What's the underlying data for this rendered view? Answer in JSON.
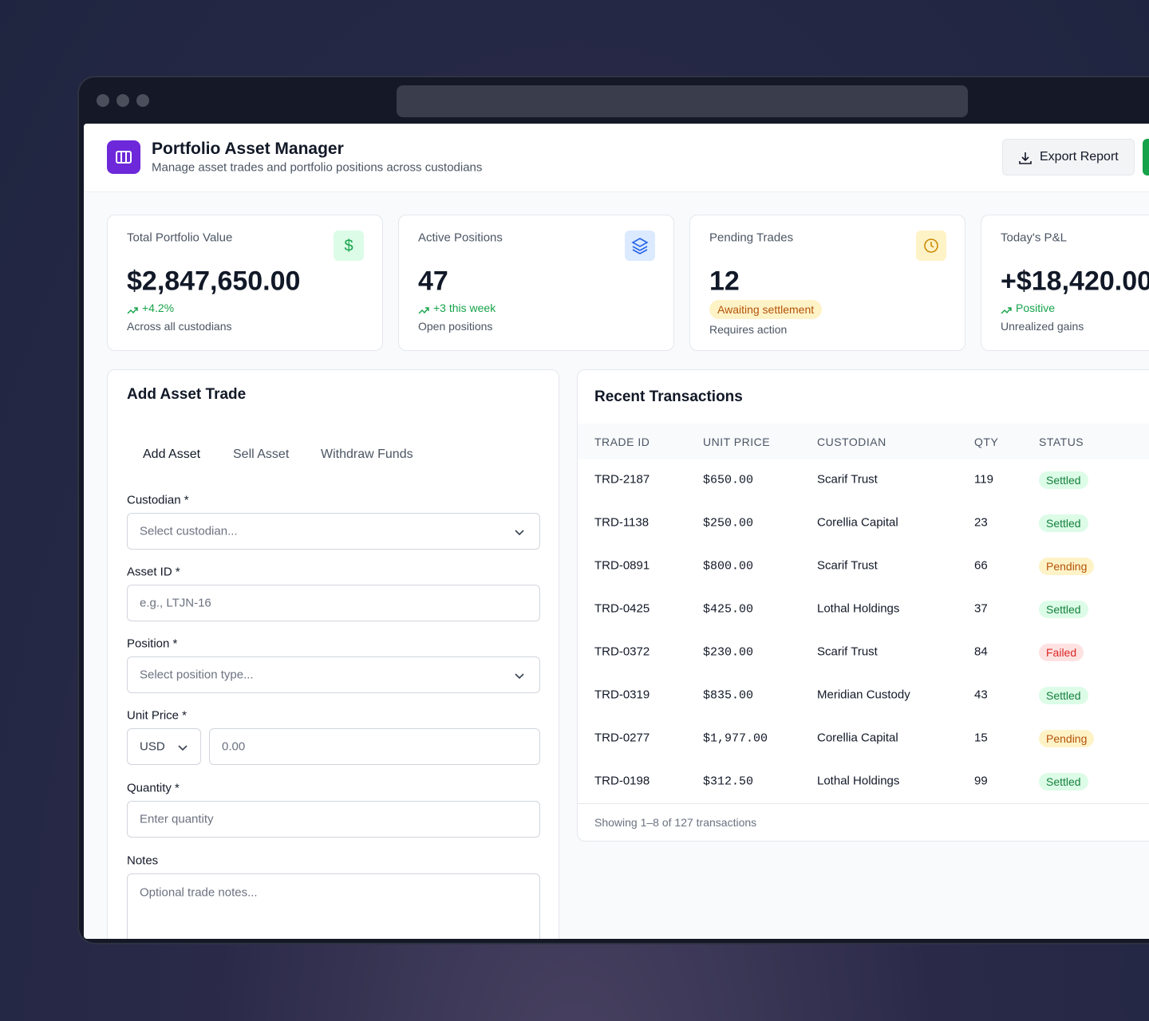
{
  "header": {
    "title": "Portfolio Asset Manager",
    "subtitle": "Manage asset trades and portfolio positions across custodians",
    "export_button": "Export Report"
  },
  "stats": [
    {
      "label": "Total Portfolio Value",
      "value": "$2,847,650.00",
      "change": "+4.2%",
      "note": "Across all custodians",
      "icon_color": "#16a34a",
      "icon_bg": "#dcfce7"
    },
    {
      "label": "Active Positions",
      "value": "47",
      "change": "+3 this week",
      "note": "Open positions",
      "icon_color": "#2563eb",
      "icon_bg": "#dbeafe"
    },
    {
      "label": "Pending Trades",
      "value": "12",
      "badge": "Awaiting settlement",
      "note": "Requires action",
      "icon_color": "#ca8a04",
      "icon_bg": "#fef3c7"
    },
    {
      "label": "Today's P&L",
      "value": "+$18,420.00",
      "change": "Positive",
      "note": "Unrealized gains"
    }
  ],
  "form": {
    "title": "Add Asset Trade",
    "tabs": [
      "Add Asset",
      "Sell Asset",
      "Withdraw Funds"
    ],
    "custodian": {
      "label": "Custodian *",
      "placeholder": "Select custodian..."
    },
    "asset_id": {
      "label": "Asset ID *",
      "placeholder": "e.g., LTJN-16"
    },
    "position": {
      "label": "Position *",
      "placeholder": "Select position type..."
    },
    "unit_price": {
      "label": "Unit Price *",
      "currency": "USD",
      "placeholder": "0.00"
    },
    "quantity": {
      "label": "Quantity *",
      "placeholder": "Enter quantity"
    },
    "notes": {
      "label": "Notes",
      "placeholder": "Optional trade notes..."
    }
  },
  "table": {
    "title": "Recent Transactions",
    "columns": [
      "TRADE ID",
      "UNIT PRICE",
      "CUSTODIAN",
      "QTY",
      "STATUS"
    ],
    "rows": [
      {
        "id": "TRD-2187",
        "price": "$650.00",
        "custodian": "Scarif Trust",
        "qty": "119",
        "status": "Settled",
        "status_color": "#15803d",
        "status_bg": "#dcfce7"
      },
      {
        "id": "TRD-1138",
        "price": "$250.00",
        "custodian": "Corellia Capital",
        "qty": "23",
        "status": "Settled",
        "status_color": "#15803d",
        "status_bg": "#dcfce7"
      },
      {
        "id": "TRD-0891",
        "price": "$800.00",
        "custodian": "Scarif Trust",
        "qty": "66",
        "status": "Pending",
        "status_color": "#b45309",
        "status_bg": "#fef3c7"
      },
      {
        "id": "TRD-0425",
        "price": "$425.00",
        "custodian": "Lothal Holdings",
        "qty": "37",
        "status": "Settled",
        "status_color": "#15803d",
        "status_bg": "#dcfce7"
      },
      {
        "id": "TRD-0372",
        "price": "$230.00",
        "custodian": "Scarif Trust",
        "qty": "84",
        "status": "Failed",
        "status_color": "#dc2626",
        "status_bg": "#fee2e2"
      },
      {
        "id": "TRD-0319",
        "price": "$835.00",
        "custodian": "Meridian Custody",
        "qty": "43",
        "status": "Settled",
        "status_color": "#15803d",
        "status_bg": "#dcfce7"
      },
      {
        "id": "TRD-0277",
        "price": "$1,977.00",
        "custodian": "Corellia Capital",
        "qty": "15",
        "status": "Pending",
        "status_color": "#b45309",
        "status_bg": "#fef3c7"
      },
      {
        "id": "TRD-0198",
        "price": "$312.50",
        "custodian": "Lothal Holdings",
        "qty": "99",
        "status": "Settled",
        "status_color": "#15803d",
        "status_bg": "#dcfce7"
      }
    ],
    "footer": "Showing 1–8 of 127 transactions"
  }
}
